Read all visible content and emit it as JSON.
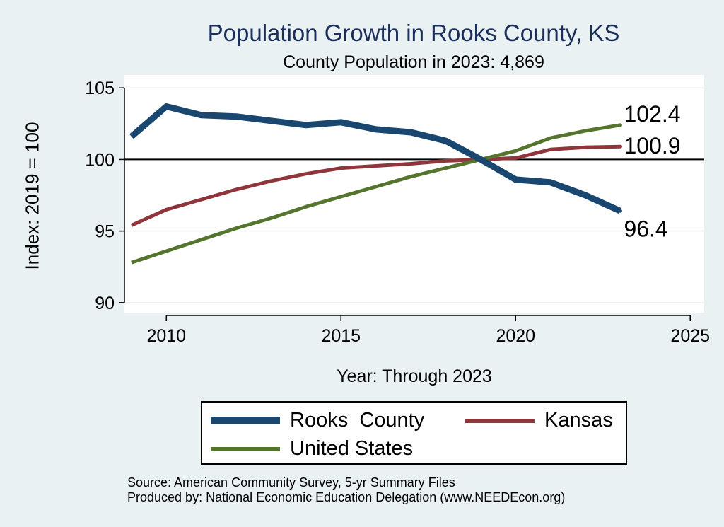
{
  "title": "Population Growth in Rooks County, KS",
  "subtitle": "County Population in 2023: 4,869",
  "colors": {
    "background": "#eaf1f3",
    "title": "#1b2f5a",
    "plot_bg": "#ffffff"
  },
  "source_lines": [
    "Source: American Community Survey, 5-yr Summary Files",
    "Produced by: National Economic Education Delegation (www.NEEDEcon.org)"
  ],
  "legend_labels": [
    "Rooks  County",
    "Kansas",
    "United States"
  ],
  "chart_data": {
    "type": "line",
    "title": "Population Growth in Rooks County, KS",
    "subtitle": "County Population in 2023: 4,869",
    "xlabel": "Year: Through 2023",
    "ylabel": "Index: 2019 = 100",
    "xlim": [
      2008.8,
      2025.4
    ],
    "ylim": [
      89.3,
      105.9
    ],
    "xticks": [
      2010,
      2015,
      2020,
      2025
    ],
    "yticks": [
      90,
      95,
      100,
      105
    ],
    "reference_line": 100,
    "x": [
      2009,
      2010,
      2011,
      2012,
      2013,
      2014,
      2015,
      2016,
      2017,
      2018,
      2019,
      2020,
      2021,
      2022,
      2023
    ],
    "series": [
      {
        "name": "Rooks  County",
        "color": "#1a476f",
        "width": 9,
        "values": [
          101.6,
          103.7,
          103.1,
          103.0,
          102.7,
          102.4,
          102.6,
          102.1,
          101.9,
          101.3,
          100.0,
          98.6,
          98.4,
          97.5,
          96.4
        ],
        "end_label": "96.4"
      },
      {
        "name": "Kansas",
        "color": "#90353b",
        "width": 5,
        "values": [
          95.4,
          96.5,
          97.2,
          97.9,
          98.5,
          99.0,
          99.4,
          99.55,
          99.7,
          99.9,
          100.0,
          100.1,
          100.7,
          100.85,
          100.9
        ],
        "end_label": "100.9"
      },
      {
        "name": "United States",
        "color": "#55752f",
        "width": 5,
        "values": [
          92.8,
          93.6,
          94.4,
          95.2,
          95.9,
          96.7,
          97.4,
          98.1,
          98.8,
          99.4,
          100.0,
          100.6,
          101.5,
          102.0,
          102.4
        ],
        "end_label": "102.4"
      }
    ],
    "legend": {
      "position": "bottom",
      "columns": 2
    }
  }
}
